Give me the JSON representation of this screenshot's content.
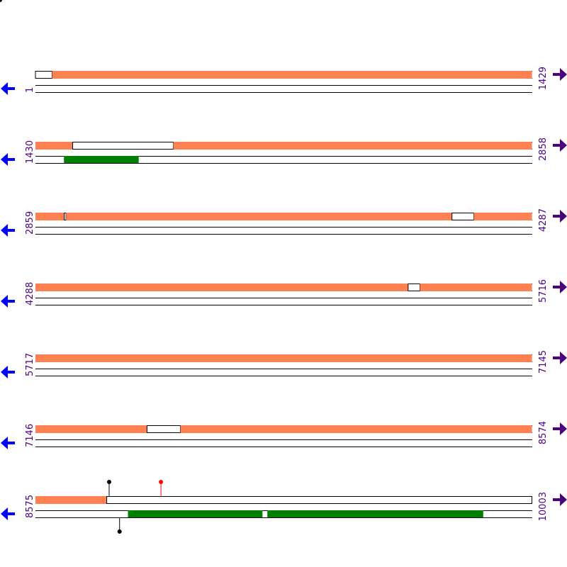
{
  "colors": {
    "feature_orange": "#ff8050",
    "feature_green": "#008000",
    "left_arrow": "#0000ff",
    "right_arrow": "#4b0080",
    "label": "#4b0080",
    "line": "#000000",
    "marker_black": "#000000",
    "marker_red": "#ff0000"
  },
  "icons": {
    "left": "blue-left-arrow-icon",
    "right": "purple-right-arrow-icon"
  },
  "map": {
    "rows": [
      {
        "start": "1",
        "end": "1429",
        "s": 1,
        "e": 1429,
        "top_segments": [
          [
            1,
            49,
            "white"
          ],
          [
            49,
            1429,
            "orange"
          ]
        ],
        "bottom_segments": [],
        "markers": []
      },
      {
        "start": "1430",
        "end": "2858",
        "s": 1430,
        "e": 2858,
        "top_segments": [
          [
            1430,
            1537,
            "orange"
          ],
          [
            1537,
            1827,
            "white"
          ],
          [
            1827,
            2858,
            "orange"
          ]
        ],
        "bottom_segments": [
          [
            1512,
            1727,
            "green"
          ]
        ],
        "markers": []
      },
      {
        "start": "2859",
        "end": "4287",
        "s": 2859,
        "e": 4287,
        "top_segments": [
          [
            2859,
            2942,
            "orange"
          ],
          [
            2942,
            2947,
            "white"
          ],
          [
            2947,
            4057,
            "orange"
          ],
          [
            4057,
            4120,
            "white"
          ],
          [
            4120,
            4287,
            "orange"
          ]
        ],
        "bottom_segments": [],
        "markers": []
      },
      {
        "start": "4288",
        "end": "5716",
        "s": 4288,
        "e": 5716,
        "top_segments": [
          [
            4288,
            5360,
            "orange"
          ],
          [
            5360,
            5394,
            "white"
          ],
          [
            5394,
            5716,
            "orange"
          ]
        ],
        "bottom_segments": [],
        "markers": []
      },
      {
        "start": "5717",
        "end": "7145",
        "s": 5717,
        "e": 7145,
        "top_segments": [
          [
            5717,
            7145,
            "orange"
          ]
        ],
        "bottom_segments": [],
        "markers": []
      },
      {
        "start": "7146",
        "end": "8574",
        "s": 7146,
        "e": 8574,
        "top_segments": [
          [
            7146,
            7467,
            "orange"
          ],
          [
            7467,
            7563,
            "white"
          ],
          [
            7563,
            8574,
            "orange"
          ]
        ],
        "bottom_segments": [],
        "markers": []
      },
      {
        "start": "8575",
        "end": "10003",
        "s": 8575,
        "e": 10003,
        "top_segments": [
          [
            8575,
            8780,
            "orange"
          ],
          [
            8780,
            10003,
            "white"
          ]
        ],
        "bottom_segments": [
          [
            8841,
            9228,
            "green"
          ],
          [
            9242,
            9863,
            "green"
          ]
        ],
        "markers": [
          {
            "pos": 8787,
            "side": "top",
            "color": "black"
          },
          {
            "pos": 8936,
            "side": "top",
            "color": "red"
          },
          {
            "pos": 8817,
            "side": "bottom",
            "color": "black"
          }
        ]
      }
    ]
  }
}
